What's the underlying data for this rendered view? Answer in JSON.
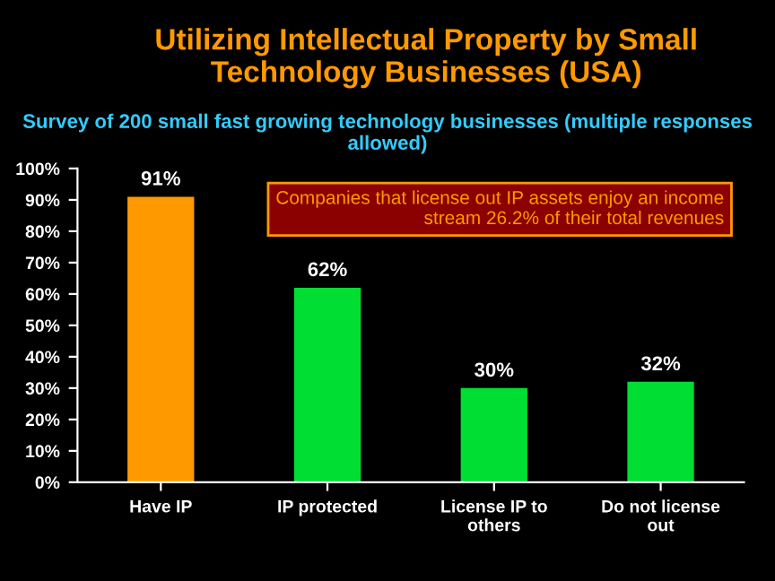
{
  "chart_data": {
    "type": "bar",
    "title": "Utilizing Intellectual Property by Small Technology Businesses (USA)",
    "subtitle": "Survey of 200 small fast growing technology businesses (multiple responses allowed)",
    "categories": [
      "Have IP",
      "IP protected",
      "License IP to\nothers",
      "Do not license\nout"
    ],
    "values": [
      91,
      62,
      30,
      32
    ],
    "colors": [
      "#ff9900",
      "#00dd33",
      "#00dd33",
      "#00dd33"
    ],
    "value_labels": [
      "91%",
      "62%",
      "30%",
      "32%"
    ],
    "ylim": [
      0,
      100
    ],
    "yticks": [
      {
        "value": 0,
        "label": "0%"
      },
      {
        "value": 10,
        "label": "10%"
      },
      {
        "value": 20,
        "label": "20%"
      },
      {
        "value": 30,
        "label": "30%"
      },
      {
        "value": 40,
        "label": "40%"
      },
      {
        "value": 50,
        "label": "50%"
      },
      {
        "value": 60,
        "label": "60%"
      },
      {
        "value": 70,
        "label": "70%"
      },
      {
        "value": 80,
        "label": "80%"
      },
      {
        "value": 90,
        "label": "90%"
      },
      {
        "value": 100,
        "label": "100%"
      }
    ],
    "annotations": [
      "Companies that license out IP assets enjoy an income stream 26.2% of their total revenues"
    ]
  }
}
